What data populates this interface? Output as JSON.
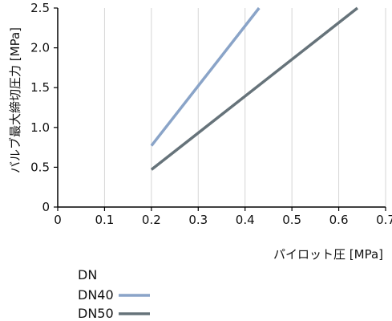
{
  "chart_data": {
    "type": "line",
    "title": "",
    "xlabel": "パイロット圧 [MPa]",
    "ylabel": "バルブ最大締切圧力 [MPa]",
    "xlim": [
      0,
      0.7
    ],
    "ylim": [
      0,
      2.5
    ],
    "xticks": [
      "0",
      "0.1",
      "0.2",
      "0.3",
      "0.4",
      "0.5",
      "0.6",
      "0.7"
    ],
    "yticks": [
      "0",
      "0.5",
      "1.0",
      "1.5",
      "2.0",
      "2.5"
    ],
    "grid": "vertical",
    "legend": {
      "title": "DN",
      "placement": "bottom-left"
    },
    "series": [
      {
        "name": "DN40",
        "color": "#8aa4c8",
        "points": [
          [
            0.2,
            0.77
          ],
          [
            0.43,
            2.5
          ]
        ]
      },
      {
        "name": "DN50",
        "color": "#66737a",
        "points": [
          [
            0.2,
            0.47
          ],
          [
            0.64,
            2.5
          ]
        ]
      }
    ]
  }
}
